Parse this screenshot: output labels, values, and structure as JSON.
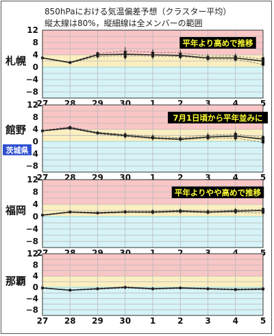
{
  "header": {
    "title_line1": "850hPaにおける気温偏差予想（クラスター平均）",
    "title_line2": "縦太線は80%，縦細線は全メンバーの範囲"
  },
  "colors": {
    "band_warm": "#f9c6c6",
    "band_mild": "#fbeec0",
    "band_cool": "#d6f3f7",
    "grid": "#b7b7b7",
    "zero_line": "#9fdede",
    "series": "#222222",
    "annotation_bg": "#000000",
    "annotation_text": "#ffff33",
    "region_tag_bg": "#2e4fd1",
    "region_tag_text": "#ffffff"
  },
  "chart_data": [
    {
      "type": "line",
      "station": "札幌",
      "annotation": "平年より高めで推移",
      "region_tag": "",
      "x": [
        "27",
        "28",
        "29",
        "30",
        "1",
        "2",
        "3",
        "4",
        "5"
      ],
      "ylim": [
        -10,
        12
      ],
      "yticks": [
        12,
        8,
        4,
        0,
        -4,
        -8
      ],
      "series": [
        {
          "values": [
            3.0,
            1.5,
            4.0,
            4.2,
            4.0,
            3.8,
            3.0,
            3.0,
            2.0
          ]
        }
      ],
      "range80": [
        [
          2.8,
          3.2
        ],
        [
          1.3,
          1.7
        ],
        [
          3.2,
          4.8
        ],
        [
          3.0,
          5.2
        ],
        [
          3.2,
          5.0
        ],
        [
          3.0,
          4.6
        ],
        [
          2.4,
          3.6
        ],
        [
          2.2,
          3.8
        ],
        [
          0.5,
          3.2
        ]
      ],
      "range_all": [
        [
          2.7,
          3.3
        ],
        [
          1.2,
          1.8
        ],
        [
          2.8,
          5.0
        ],
        [
          2.5,
          6.5
        ],
        [
          2.6,
          5.8
        ],
        [
          2.6,
          5.6
        ],
        [
          2.0,
          4.2
        ],
        [
          1.8,
          4.4
        ],
        [
          -0.5,
          4.0
        ]
      ]
    },
    {
      "type": "line",
      "station": "館野",
      "annotation": "7月1日頃から平年並みに",
      "region_tag": "茨城県",
      "x": [
        "27",
        "28",
        "29",
        "30",
        "1",
        "2",
        "3",
        "4",
        "5"
      ],
      "ylim": [
        -10,
        12
      ],
      "yticks": [
        12,
        8,
        4,
        0,
        -4,
        -8
      ],
      "series": [
        {
          "values": [
            3.5,
            4.5,
            2.8,
            2.0,
            1.2,
            0.8,
            1.5,
            1.8,
            0.8
          ]
        }
      ],
      "range80": [
        [
          3.3,
          3.7
        ],
        [
          4.0,
          5.0
        ],
        [
          2.4,
          3.2
        ],
        [
          1.4,
          2.6
        ],
        [
          0.8,
          1.8
        ],
        [
          0.4,
          1.3
        ],
        [
          0.8,
          2.2
        ],
        [
          0.8,
          2.8
        ],
        [
          -0.6,
          1.8
        ]
      ],
      "range_all": [
        [
          3.2,
          3.8
        ],
        [
          3.8,
          5.3
        ],
        [
          2.2,
          3.4
        ],
        [
          1.0,
          3.0
        ],
        [
          0.3,
          2.4
        ],
        [
          0.0,
          1.8
        ],
        [
          0.4,
          2.8
        ],
        [
          0.2,
          3.4
        ],
        [
          -1.5,
          2.5
        ]
      ]
    },
    {
      "type": "line",
      "station": "福岡",
      "annotation": "平年よりやや高めで推移",
      "region_tag": "",
      "x": [
        "27",
        "28",
        "29",
        "30",
        "1",
        "2",
        "3",
        "4",
        "5"
      ],
      "ylim": [
        -10,
        12
      ],
      "yticks": [
        12,
        8,
        4,
        0,
        -4,
        -8
      ],
      "series": [
        {
          "values": [
            0.5,
            1.5,
            1.2,
            1.5,
            1.5,
            1.8,
            1.5,
            1.8,
            2.0
          ]
        }
      ],
      "range80": [
        [
          0.3,
          0.7
        ],
        [
          1.2,
          1.8
        ],
        [
          0.9,
          1.5
        ],
        [
          1.2,
          1.9
        ],
        [
          1.0,
          2.0
        ],
        [
          1.3,
          2.3
        ],
        [
          1.0,
          2.0
        ],
        [
          1.2,
          2.4
        ],
        [
          1.0,
          2.8
        ]
      ],
      "range_all": [
        [
          0.2,
          0.8
        ],
        [
          1.1,
          1.9
        ],
        [
          0.7,
          1.7
        ],
        [
          1.0,
          2.2
        ],
        [
          0.8,
          2.4
        ],
        [
          1.0,
          2.6
        ],
        [
          0.8,
          2.4
        ],
        [
          0.9,
          2.8
        ],
        [
          0.3,
          3.2
        ]
      ]
    },
    {
      "type": "line",
      "station": "那覇",
      "annotation": "",
      "region_tag": "",
      "x": [
        "27",
        "28",
        "29",
        "30",
        "1",
        "2",
        "3",
        "4",
        "5"
      ],
      "ylim": [
        -10,
        12
      ],
      "yticks": [
        12,
        8,
        4,
        0,
        -4,
        -8
      ],
      "series": [
        {
          "values": [
            -0.2,
            -1.0,
            -0.5,
            0.0,
            -0.5,
            -0.2,
            -0.5,
            -0.8,
            -0.6
          ]
        }
      ],
      "range80": [
        [
          -0.4,
          0.0
        ],
        [
          -1.2,
          -0.8
        ],
        [
          -0.8,
          -0.2
        ],
        [
          -0.3,
          0.3
        ],
        [
          -0.8,
          -0.2
        ],
        [
          -0.5,
          0.1
        ],
        [
          -0.8,
          -0.2
        ],
        [
          -1.1,
          -0.4
        ],
        [
          -1.0,
          -0.1
        ]
      ],
      "range_all": [
        [
          -0.5,
          0.1
        ],
        [
          -1.3,
          -0.7
        ],
        [
          -1.0,
          0.0
        ],
        [
          -0.6,
          0.6
        ],
        [
          -1.0,
          0.0
        ],
        [
          -0.7,
          0.3
        ],
        [
          -1.0,
          0.0
        ],
        [
          -1.3,
          -0.2
        ],
        [
          -1.3,
          0.1
        ]
      ]
    }
  ]
}
